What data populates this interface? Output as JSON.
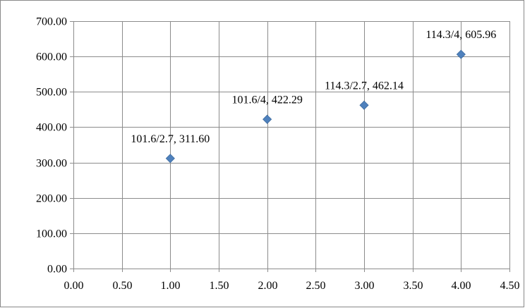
{
  "chart_data": {
    "type": "scatter",
    "title": "",
    "xlabel": "",
    "ylabel": "",
    "xlim": [
      0,
      4.5
    ],
    "ylim": [
      0,
      700
    ],
    "x_ticks": [
      "0.00",
      "0.50",
      "1.00",
      "1.50",
      "2.00",
      "2.50",
      "3.00",
      "3.50",
      "4.00",
      "4.50"
    ],
    "y_ticks": [
      "0.00",
      "100.00",
      "200.00",
      "300.00",
      "400.00",
      "500.00",
      "600.00",
      "700.00"
    ],
    "grid": true,
    "legend": "none",
    "marker": "diamond",
    "marker_color": "#4f81bd",
    "series": [
      {
        "points": [
          {
            "x": 1,
            "y": 311.6,
            "label": "101.6/2.7, 311.60"
          },
          {
            "x": 2,
            "y": 422.29,
            "label": "101.6/4, 422.29"
          },
          {
            "x": 3,
            "y": 462.14,
            "label": "114.3/2.7, 462.14"
          },
          {
            "x": 4,
            "y": 605.96,
            "label": "114.3/4, 605.96"
          }
        ]
      }
    ]
  }
}
